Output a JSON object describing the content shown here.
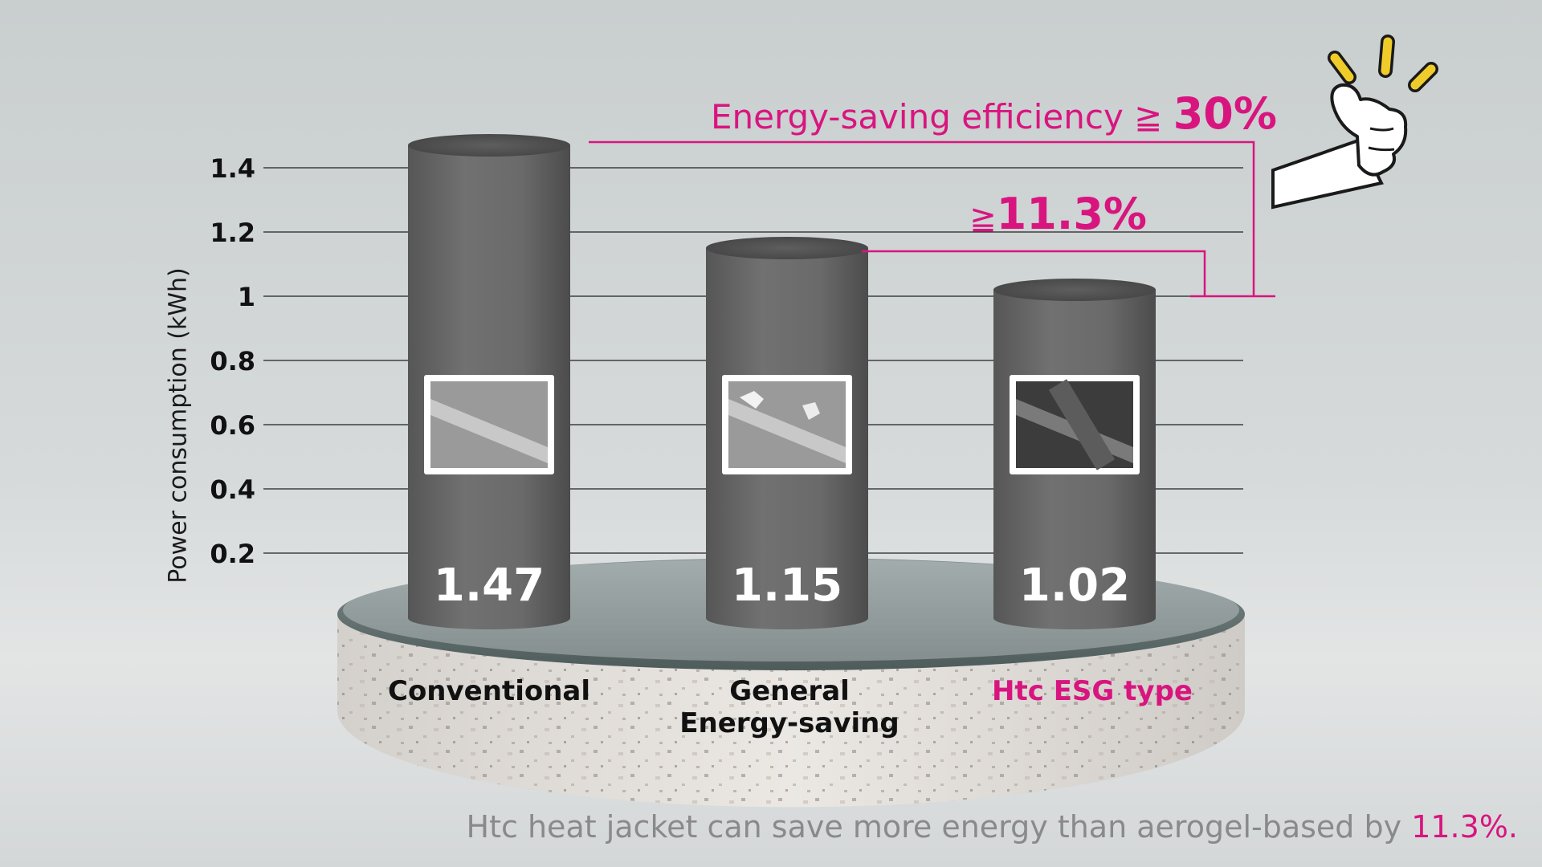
{
  "chart_data": {
    "type": "bar",
    "ylabel": "Power consumption (kWh)",
    "yticks": [
      "1.4",
      "1.2",
      "1",
      "0.8",
      "0.6",
      "0.4",
      "0.2"
    ],
    "ytick_values": [
      1.4,
      1.2,
      1.0,
      0.8,
      0.6,
      0.4,
      0.2
    ],
    "ylim": [
      0,
      1.5
    ],
    "grid": true,
    "categories": [
      "Conventional",
      "General Energy-saving",
      "Htc ESG type"
    ],
    "category_lines": [
      [
        "Conventional"
      ],
      [
        "General",
        "Energy-saving"
      ],
      [
        "Htc ESG type"
      ]
    ],
    "values": [
      1.47,
      1.15,
      1.02
    ],
    "value_labels": [
      "1.47",
      "1.15",
      "1.02"
    ],
    "highlight_category": "Htc ESG type",
    "annotations": [
      {
        "text": "Energy-saving efficiency ≧ ",
        "value": "30%"
      },
      {
        "text": "≧",
        "value": "11.3%"
      }
    ]
  },
  "footer": {
    "text": "Htc heat jacket can save more energy than aerogel-based by ",
    "highlight": "11.3%."
  },
  "colors": {
    "accent": "#d8157f",
    "bar": "#6b6b6b",
    "background": "#cdd2d3",
    "thumbs_up_rays": "#f0cc2a"
  },
  "icons": {
    "bar_thumbnails": "microscope-fiber-image",
    "decoration": "thumbs-up-icon"
  }
}
